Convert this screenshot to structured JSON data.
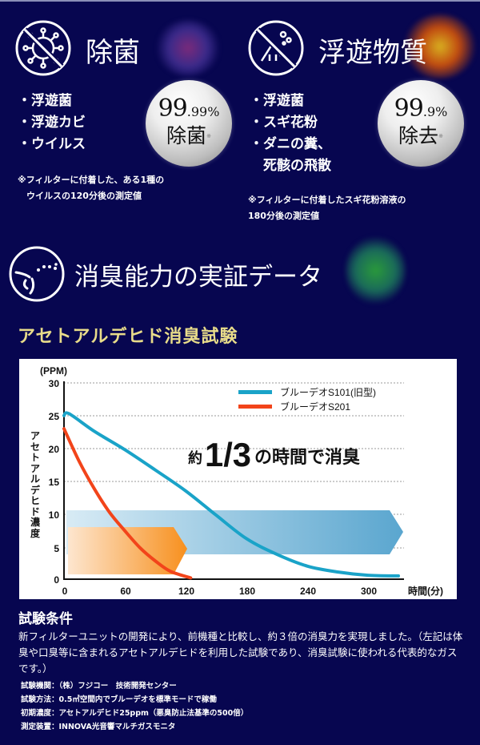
{
  "section_sterilize": {
    "icon": "no-virus-icon",
    "title": "除菌",
    "items": [
      "・浮遊菌",
      "・浮遊カビ",
      "・ウイルス"
    ],
    "badge": {
      "value_main": "99",
      "value_decimal": ".99%",
      "label": "除菌",
      "mark": "※"
    },
    "note_lines": [
      "※フィルターに付着した、ある1種の",
      "　ウイルスの120分後の測定値"
    ]
  },
  "section_airborne": {
    "icon": "no-particles-icon",
    "title": "浮遊物質",
    "items": [
      "・浮遊菌",
      "・スギ花粉",
      "・ダニの糞、",
      "　死骸の飛散"
    ],
    "badge": {
      "value_main": "99",
      "value_decimal": ".9%",
      "label": "除去",
      "mark": "※"
    },
    "note_lines": [
      "※フィルターに付着したスギ花粉溶液の",
      "180分後の測定値"
    ]
  },
  "section_deodorize": {
    "icon": "odor-nose-icon",
    "title": "消臭能力の実証データ",
    "subtitle": "アセトアルデヒド消臭試験"
  },
  "chart_data": {
    "type": "line",
    "title": "アセトアルデヒド消臭試験",
    "headline": {
      "prefix": "約",
      "fraction": "1/3",
      "suffix": "の時間で消臭"
    },
    "xlabel": "時間(分)",
    "ylabel": "アセトアルデヒド濃度",
    "yunit": "(PPM)",
    "xlim": [
      0,
      330
    ],
    "ylim": [
      0,
      30
    ],
    "xticks": [
      0,
      60,
      120,
      180,
      240,
      300
    ],
    "yticks": [
      0,
      5,
      10,
      15,
      20,
      25,
      30
    ],
    "grid": "horizontal dashed",
    "legend_position": "upper right",
    "series": [
      {
        "name": "ブルーデオS101(旧型)",
        "color": "#1aa3c8",
        "x": [
          0,
          5,
          30,
          60,
          90,
          120,
          150,
          180,
          210,
          240,
          270,
          300,
          330
        ],
        "y": [
          25.0,
          25.3,
          22.6,
          19.8,
          16.7,
          13.5,
          9.8,
          6.2,
          3.8,
          2.0,
          1.1,
          0.6,
          0.5
        ]
      },
      {
        "name": "ブルーデオS201",
        "color": "#f2441a",
        "x": [
          0,
          15,
          30,
          45,
          60,
          75,
          90,
          105,
          125
        ],
        "y": [
          23.0,
          18.0,
          13.8,
          10.2,
          7.4,
          4.8,
          2.8,
          1.2,
          0.2
        ]
      }
    ],
    "annotations": [
      {
        "type": "arrow-band",
        "color": "#f7901e",
        "x_range": [
          0,
          120
        ],
        "y_range": [
          1.2,
          8.2
        ],
        "meaning": "S201 time"
      },
      {
        "type": "arrow-band",
        "color": "#5aa6cf",
        "x_range": [
          0,
          335
        ],
        "y_range": [
          3.6,
          10.6
        ],
        "meaning": "S101 time"
      }
    ]
  },
  "conditions": {
    "title": "試験条件",
    "text": "新フィルターユニットの開発により、前機種と比較し、約３倍の消臭力を実現しました。（左記は体臭や口臭等に含まれるアセトアルデヒドを利用した試験であり、消臭試験に使われる代表的なガスです。）",
    "specs": [
      "試験機関：（株）フジコー　技術開発センター",
      "試験方法：0.5㎥空間内でブルーデオを標準モードで稼働",
      "初期濃度：アセトアルデヒド25ppm（悪臭防止法基準の500倍）",
      "測定装置：INNOVA光音響マルチガスモニタ"
    ]
  }
}
